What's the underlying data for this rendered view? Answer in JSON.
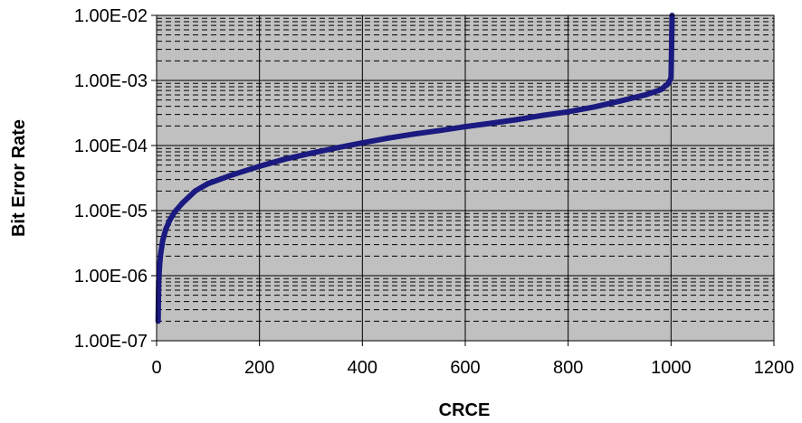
{
  "chart_data": {
    "type": "line",
    "title": "",
    "xlabel": "CRCE",
    "ylabel": "Bit Error Rate",
    "xlim": [
      0,
      1200
    ],
    "ylim": [
      1e-07,
      0.01
    ],
    "yscale": "log",
    "grid": true,
    "legend": "none",
    "x_ticks": [
      0,
      200,
      400,
      600,
      800,
      1000,
      1200
    ],
    "x_tick_labels": [
      "0",
      "200",
      "400",
      "600",
      "800",
      "1000",
      "1200"
    ],
    "y_ticks": [
      1e-07,
      1e-06,
      1e-05,
      0.0001,
      0.001,
      0.01
    ],
    "y_tick_labels": [
      "1.00E-07",
      "1.00E-06",
      "1.00E-05",
      "1.00E-04",
      "1.00E-03",
      "1.00E-02"
    ],
    "colors": {
      "plot_background": "#c0c0c0",
      "line": "#1a1a80",
      "grid": "#000000"
    },
    "series": [
      {
        "x": [
          3,
          4,
          6,
          8,
          12,
          18,
          25,
          35,
          50,
          75,
          100,
          150,
          200,
          250,
          300,
          350,
          400,
          450,
          500,
          550,
          600,
          650,
          700,
          750,
          800,
          850,
          900,
          950,
          980,
          995,
          1000,
          1001,
          1002
        ],
        "values": [
          2e-07,
          8e-07,
          1.5e-06,
          2.2e-06,
          3.5e-06,
          5.2e-06,
          7e-06,
          9.5e-06,
          1.3e-05,
          2e-05,
          2.6e-05,
          3.6e-05,
          4.8e-05,
          6.2e-05,
          7.6e-05,
          9.2e-05,
          0.00011,
          0.00013,
          0.00015,
          0.00017,
          0.000195,
          0.00022,
          0.00025,
          0.00029,
          0.00033,
          0.00039,
          0.00048,
          0.0006,
          0.00072,
          0.0009,
          0.0011,
          0.003,
          0.01
        ]
      }
    ]
  }
}
